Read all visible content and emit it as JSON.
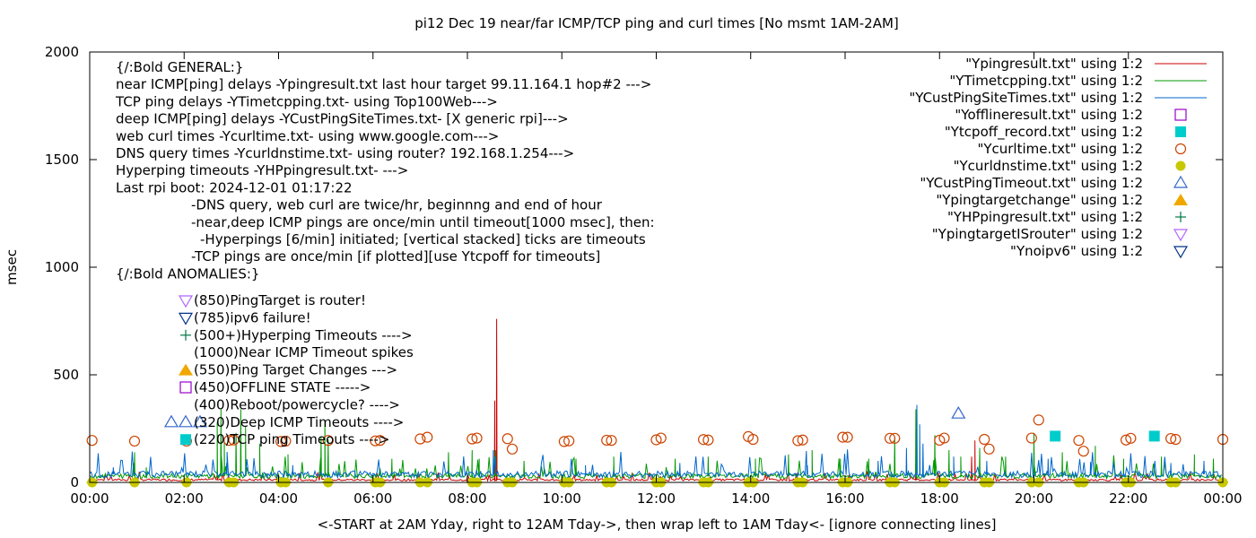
{
  "chart_data": {
    "type": "line",
    "title": "pi12 Dec 19  near/far ICMP/TCP ping and curl times [No msmt 1AM-2AM]",
    "xlabel": "<-START at 2AM Yday, right to 12AM Tday->, then wrap left to 1AM Tday<- [ignore connecting lines]",
    "ylabel": "msec",
    "xlim": [
      0,
      24
    ],
    "ylim": [
      0,
      2000
    ],
    "x_ticks": [
      0,
      2,
      4,
      6,
      8,
      10,
      12,
      14,
      16,
      18,
      20,
      22,
      24
    ],
    "x_tick_labels": [
      "00:00",
      "02:00",
      "04:00",
      "06:00",
      "08:00",
      "10:00",
      "12:00",
      "14:00",
      "16:00",
      "18:00",
      "20:00",
      "22:00",
      "00:00"
    ],
    "y_ticks": [
      0,
      500,
      1000,
      1500,
      2000
    ],
    "y_tick_labels": [
      "0",
      "500",
      "1000",
      "1500",
      "2000"
    ],
    "grid": false,
    "legend_position": "top-right",
    "legend": [
      {
        "label": "\"Ypingresult.txt\" using 1:2",
        "style": "line",
        "color": "#cc0000"
      },
      {
        "label": "\"YTimetcpping.txt\" using 1:2",
        "style": "line",
        "color": "#009900"
      },
      {
        "label": "\"YCustPingSiteTimes.txt\" using 1:2",
        "style": "line",
        "color": "#0066cc"
      },
      {
        "label": "\"Yofflineresult.txt\" using 1:2",
        "style": "open-square",
        "color": "#9900cc"
      },
      {
        "label": "\"Ytcpoff_record.txt\" using 1:2",
        "style": "filled-square",
        "color": "#00cccc"
      },
      {
        "label": "\"Ycurltime.txt\" using 1:2",
        "style": "open-circle",
        "color": "#cc4400"
      },
      {
        "label": "\"Ycurldnstime.txt\" using 1:2",
        "style": "filled-circle",
        "color": "#c8c800"
      },
      {
        "label": "\"YCustPingTimeout.txt\" using 1:2",
        "style": "open-triangle-up",
        "color": "#3366cc"
      },
      {
        "label": "\"Ypingtargetchange\" using 1:2",
        "style": "filled-triangle-up",
        "color": "#f0a800"
      },
      {
        "label": "\"YHPpingresult.txt\" using 1:2",
        "style": "plus",
        "color": "#007744"
      },
      {
        "label": "\"YpingtargetISrouter\" using 1:2",
        "style": "open-triangle-down",
        "color": "#b266ff"
      },
      {
        "label": "\"Ynoipv6\" using 1:2",
        "style": "open-triangle-down",
        "color": "#003388"
      }
    ],
    "notes": [
      "{/:Bold GENERAL:}",
      "near ICMP[ping] delays -Ypingresult.txt last hour target 99.11.164.1 hop#2 --->",
      "TCP ping delays -YTimetcpping.txt- using Top100Web--->",
      "deep ICMP[ping] delays -YCustPingSiteTimes.txt- [X generic rpi]--->",
      "web curl times -Ycurltime.txt- using www.google.com--->",
      "DNS query times -Ycurldnstime.txt- using router? 192.168.1.254--->",
      "Hyperping timeouts -YHPpingresult.txt- --->",
      "Last rpi boot: 2024-12-01 01:17:22",
      "-DNS query, web curl are twice/hr, beginnng and end of hour",
      "-near,deep ICMP pings are once/min until timeout[1000 msec], then:",
      "-Hyperpings [6/min] initiated; [vertical stacked] ticks are timeouts",
      "-TCP pings are once/min [if plotted][use Ytcpoff for timeouts]",
      "{/:Bold ANOMALIES:}"
    ],
    "anomalies": [
      {
        "label": "(850)PingTarget is router!",
        "marker": "open-triangle-down",
        "color": "#b266ff"
      },
      {
        "label": "(785)ipv6 failure!",
        "marker": "open-triangle-down",
        "color": "#003388"
      },
      {
        "label": "(500+)Hyperping Timeouts ---->",
        "marker": "plus",
        "color": "#007744"
      },
      {
        "label": "(1000)Near ICMP Timeout spikes",
        "marker": "none",
        "color": ""
      },
      {
        "label": "(550)Ping Target Changes --->",
        "marker": "filled-triangle-up",
        "color": "#f0a800"
      },
      {
        "label": "(450)OFFLINE STATE ----->",
        "marker": "open-square",
        "color": "#9900cc"
      },
      {
        "label": "(400)Reboot/powercycle? ---->",
        "marker": "none",
        "color": ""
      },
      {
        "label": "(320)Deep ICMP Timeouts ---->",
        "marker": "open-triangle-up-x3",
        "color": "#3366cc"
      },
      {
        "label": "(220)TCP ping Timeouts ---->",
        "marker": "filled-square",
        "color": "#00cccc"
      }
    ],
    "series": [
      {
        "name": "\"Ypingresult.txt\" using 1:2",
        "color": "#cc0000",
        "baseline": 12,
        "spikes": [
          [
            8.62,
            760
          ],
          [
            8.58,
            380
          ],
          [
            18.75,
            195
          ],
          [
            18.68,
            120
          ],
          [
            2.7,
            60
          ],
          [
            17.5,
            80
          ]
        ]
      },
      {
        "name": "\"YTimetcpping.txt\" using 1:2",
        "color": "#009900",
        "baseline": 30,
        "spikes": [
          [
            0.95,
            140
          ],
          [
            1.2,
            70
          ],
          [
            2.7,
            280
          ],
          [
            2.78,
            340
          ],
          [
            2.85,
            190
          ],
          [
            3.1,
            230
          ],
          [
            3.2,
            340
          ],
          [
            3.3,
            260
          ],
          [
            3.6,
            180
          ],
          [
            4.2,
            130
          ],
          [
            4.9,
            210
          ],
          [
            4.98,
            290
          ],
          [
            5.05,
            200
          ],
          [
            6.4,
            110
          ],
          [
            7.6,
            140
          ],
          [
            8.1,
            150
          ],
          [
            8.25,
            110
          ],
          [
            8.6,
            150
          ],
          [
            9.2,
            100
          ],
          [
            10.3,
            110
          ],
          [
            11.1,
            120
          ],
          [
            12.4,
            110
          ],
          [
            13.1,
            120
          ],
          [
            14.1,
            110
          ],
          [
            14.8,
            130
          ],
          [
            15.3,
            150
          ],
          [
            15.9,
            110
          ],
          [
            16.5,
            110
          ],
          [
            17.05,
            210
          ],
          [
            17.5,
            340
          ],
          [
            17.9,
            220
          ],
          [
            18.2,
            150
          ],
          [
            18.45,
            120
          ],
          [
            18.85,
            160
          ],
          [
            19.4,
            120
          ],
          [
            20.0,
            230
          ],
          [
            20.6,
            140
          ],
          [
            21.3,
            170
          ],
          [
            21.9,
            110
          ],
          [
            22.7,
            120
          ],
          [
            23.4,
            130
          ],
          [
            23.8,
            110
          ]
        ]
      },
      {
        "name": "\"YCustPingSiteTimes.txt\" using 1:2",
        "color": "#0066cc",
        "baseline": 38,
        "spikes": [
          [
            0.5,
            70
          ],
          [
            2.9,
            90
          ],
          [
            4.3,
            80
          ],
          [
            8.55,
            150
          ],
          [
            10.5,
            80
          ],
          [
            12.5,
            90
          ],
          [
            15.2,
            80
          ],
          [
            16.7,
            100
          ],
          [
            17.3,
            160
          ],
          [
            17.52,
            360
          ],
          [
            17.58,
            270
          ],
          [
            17.65,
            180
          ],
          [
            18.3,
            120
          ],
          [
            19.0,
            100
          ],
          [
            20.3,
            110
          ],
          [
            21.2,
            95
          ],
          [
            22.9,
            90
          ],
          [
            23.6,
            100
          ]
        ]
      }
    ],
    "curltime_points": [
      [
        0.05,
        195
      ],
      [
        0.95,
        192
      ],
      [
        2.05,
        192
      ],
      [
        2.95,
        195
      ],
      [
        3.05,
        197
      ],
      [
        4.05,
        190
      ],
      [
        4.15,
        192
      ],
      [
        5.05,
        195
      ],
      [
        6.05,
        193
      ],
      [
        6.15,
        195
      ],
      [
        7.0,
        202
      ],
      [
        7.15,
        210
      ],
      [
        8.1,
        202
      ],
      [
        8.2,
        206
      ],
      [
        8.85,
        203
      ],
      [
        8.95,
        155
      ],
      [
        10.05,
        190
      ],
      [
        10.15,
        193
      ],
      [
        10.95,
        196
      ],
      [
        11.05,
        195
      ],
      [
        12.0,
        198
      ],
      [
        12.1,
        206
      ],
      [
        13.0,
        199
      ],
      [
        13.1,
        197
      ],
      [
        13.95,
        213
      ],
      [
        14.05,
        200
      ],
      [
        15.0,
        194
      ],
      [
        15.1,
        197
      ],
      [
        15.95,
        210
      ],
      [
        16.05,
        210
      ],
      [
        16.95,
        205
      ],
      [
        17.05,
        205
      ],
      [
        18.0,
        196
      ],
      [
        18.1,
        206
      ],
      [
        18.95,
        200
      ],
      [
        19.05,
        155
      ],
      [
        19.95,
        206
      ],
      [
        20.1,
        290
      ],
      [
        20.95,
        195
      ],
      [
        21.05,
        145
      ],
      [
        21.95,
        197
      ],
      [
        22.05,
        205
      ],
      [
        22.9,
        204
      ],
      [
        23.0,
        200
      ],
      [
        24.0,
        200
      ]
    ],
    "dns_points": [
      0.05,
      0.95,
      2.05,
      2.95,
      3.05,
      4.05,
      4.15,
      5.05,
      6.05,
      6.15,
      7.0,
      7.15,
      8.1,
      8.2,
      8.85,
      8.95,
      10.05,
      10.15,
      10.95,
      11.05,
      12.0,
      12.1,
      13.0,
      13.1,
      13.95,
      14.05,
      15.0,
      15.1,
      15.95,
      16.05,
      16.95,
      17.05,
      18.0,
      18.1,
      18.95,
      19.05,
      19.95,
      20.1,
      20.95,
      21.05,
      21.95,
      22.05,
      22.9,
      23.0,
      24.0
    ],
    "dns_value": 0,
    "tcp_timeout_points": [
      [
        20.45,
        215
      ],
      [
        22.55,
        215
      ]
    ],
    "deep_icmp_timeout_points": [
      [
        18.4,
        320
      ]
    ]
  }
}
